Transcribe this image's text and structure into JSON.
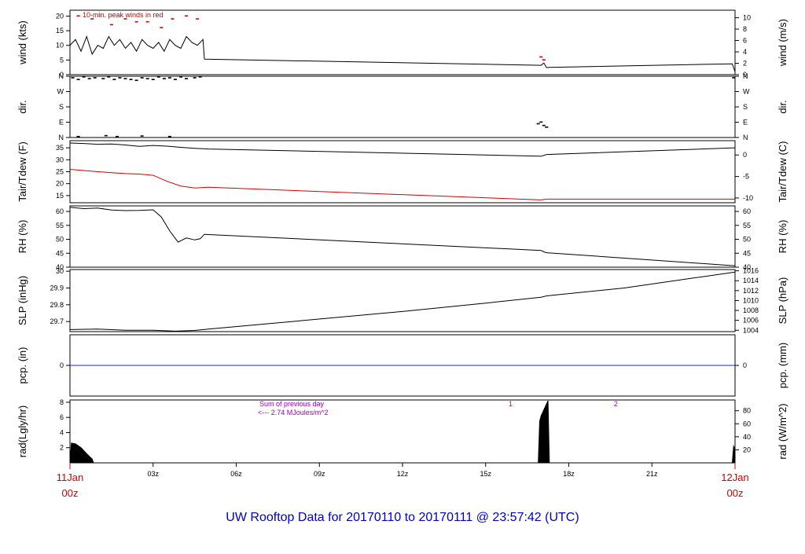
{
  "title": "UW Rooftop Data for 20170110  to  20170111 @ 23:57:42  (UTC)",
  "colors": {
    "black": "#000000",
    "red": "#d00000",
    "blue": "#0000c0",
    "purple": "#9a00c0",
    "pcp_line": "#2222dd"
  },
  "x_axis": {
    "range_hours": [
      0,
      24
    ],
    "ticks": [
      {
        "h": 3,
        "label": "03z"
      },
      {
        "h": 6,
        "label": "06z"
      },
      {
        "h": 9,
        "label": "09z"
      },
      {
        "h": 12,
        "label": "12z"
      },
      {
        "h": 15,
        "label": "15z"
      },
      {
        "h": 18,
        "label": "18z"
      },
      {
        "h": 21,
        "label": "21z"
      }
    ],
    "start_label": {
      "day": "11Jan",
      "time": "00z"
    },
    "end_label": {
      "day": "12Jan",
      "time": "00z"
    }
  },
  "chart_data": [
    {
      "type": "line",
      "ylabel_left": "wind (kts)",
      "ylabel_right": "wind (m/s)",
      "ylim": [
        0,
        22
      ],
      "yticks_left": [
        0,
        5,
        10,
        15,
        20
      ],
      "yticks_right": {
        "values": [
          0,
          2,
          4,
          6,
          8,
          10
        ],
        "to_left": 1.94384
      },
      "annotation": "10-min. peak winds in red",
      "series": [
        {
          "color": "#000000",
          "x": [
            0,
            0.2,
            0.4,
            0.6,
            0.8,
            1.0,
            1.2,
            1.4,
            1.6,
            1.8,
            2.0,
            2.2,
            2.4,
            2.6,
            2.8,
            3.0,
            3.2,
            3.4,
            3.6,
            3.8,
            4.0,
            4.2,
            4.4,
            4.6,
            4.8,
            4.85,
            17.0,
            17.1,
            17.2,
            17.3,
            23.9,
            24.0
          ],
          "y": [
            10,
            12,
            8,
            13,
            7,
            10,
            9,
            13,
            10,
            12,
            9,
            11,
            8,
            12,
            10,
            9,
            11,
            8,
            12,
            10,
            9,
            13,
            11,
            10,
            12,
            5.3,
            3.2,
            4.0,
            2.4,
            2.5,
            3.7,
            1.0
          ]
        }
      ],
      "peaks": {
        "color": "#d00000",
        "x": [
          0.3,
          0.8,
          1.5,
          2.0,
          2.4,
          2.8,
          3.3,
          3.7,
          4.2,
          4.6,
          17.0,
          17.1
        ],
        "y": [
          20,
          19,
          17,
          19,
          18,
          18,
          16,
          19,
          20,
          19,
          6,
          5
        ]
      }
    },
    {
      "type": "scatter",
      "ylabel_left": "dir.",
      "ylabel_right": "dir.",
      "ylim": [
        0,
        360
      ],
      "yticks": [
        {
          "v": 0,
          "l": "N"
        },
        {
          "v": 90,
          "l": "E"
        },
        {
          "v": 180,
          "l": "S"
        },
        {
          "v": 270,
          "l": "W"
        },
        {
          "v": 360,
          "l": "N"
        }
      ],
      "x": [
        0.1,
        0.3,
        0.5,
        0.7,
        0.9,
        1.2,
        1.4,
        1.6,
        1.8,
        2.0,
        2.2,
        2.4,
        2.6,
        2.8,
        3.0,
        3.2,
        3.4,
        3.6,
        3.8,
        4.0,
        4.2,
        4.5,
        4.7,
        0.3,
        1.3,
        1.7,
        2.6,
        3.6,
        16.9,
        17.0,
        17.1,
        17.2,
        23.95
      ],
      "y": [
        350,
        340,
        355,
        345,
        350,
        345,
        355,
        340,
        350,
        345,
        340,
        335,
        350,
        345,
        340,
        355,
        345,
        350,
        340,
        355,
        345,
        350,
        355,
        5,
        10,
        5,
        8,
        5,
        80,
        90,
        70,
        60,
        350
      ]
    },
    {
      "type": "line",
      "ylabel_left": "Tair/Tdew (F)",
      "ylabel_right": "Tair/Tdew (C)",
      "ylim": [
        12,
        38
      ],
      "yticks_left": [
        15,
        20,
        25,
        30,
        35
      ],
      "yticks_right": {
        "values": [
          -10,
          -5,
          0
        ],
        "c_to_f": true
      },
      "series": [
        {
          "name": "Tair",
          "color": "#000000",
          "x": [
            0,
            0.5,
            1.0,
            1.5,
            2.0,
            2.5,
            3.0,
            3.5,
            4.0,
            4.5,
            5.0,
            17.0,
            17.2,
            24.0
          ],
          "y": [
            37.0,
            36.8,
            36.5,
            36.6,
            36.2,
            35.6,
            36.0,
            35.7,
            35.2,
            34.8,
            34.5,
            31.5,
            32.2,
            35.0
          ]
        },
        {
          "name": "Tdew",
          "color": "#d00000",
          "x": [
            0,
            0.5,
            1.0,
            1.5,
            2.0,
            2.5,
            3.0,
            3.5,
            4.0,
            4.5,
            5.0,
            17.0,
            17.2,
            24.0
          ],
          "y": [
            26.0,
            25.5,
            25.0,
            24.6,
            24.2,
            24.0,
            23.5,
            21.0,
            19.0,
            18.2,
            18.5,
            13.2,
            13.5,
            13.5
          ]
        }
      ]
    },
    {
      "type": "line",
      "ylabel_left": "RH (%)",
      "ylabel_right": "RH (%)",
      "ylim": [
        40,
        62
      ],
      "yticks_left": [
        40,
        45,
        50,
        55,
        60
      ],
      "yticks_right": {
        "values": [
          40,
          45,
          50,
          55,
          60
        ]
      },
      "series": [
        {
          "color": "#000000",
          "x": [
            0,
            0.5,
            1.0,
            1.5,
            2.0,
            2.5,
            3.0,
            3.3,
            3.6,
            3.9,
            4.2,
            4.5,
            4.7,
            4.85,
            17.0,
            17.1,
            17.2,
            24.0
          ],
          "y": [
            61.5,
            61.0,
            61.2,
            60.5,
            60.3,
            60.4,
            60.6,
            58.0,
            53.0,
            49.0,
            50.5,
            49.8,
            50.2,
            51.8,
            46.0,
            45.5,
            45.2,
            40.5
          ]
        }
      ]
    },
    {
      "type": "line",
      "ylabel_left": "SLP (inHg)",
      "ylabel_right": "SLP (hPa)",
      "ylim": [
        29.64,
        30.01
      ],
      "yticks_left": [
        29.7,
        29.8,
        29.9,
        30.0
      ],
      "yticks_right": {
        "values": [
          1004,
          1006,
          1008,
          1010,
          1012,
          1014,
          1016
        ],
        "hpa_to_inhg": 0.02953
      },
      "series": [
        {
          "color": "#000000",
          "x": [
            0,
            1.0,
            2.0,
            3.0,
            3.8,
            4.5,
            5.0,
            8.0,
            12.0,
            15.0,
            17.0,
            17.2,
            20.0,
            24.0
          ],
          "y": [
            29.652,
            29.655,
            29.648,
            29.648,
            29.643,
            29.647,
            29.655,
            29.7,
            29.76,
            29.81,
            29.845,
            29.853,
            29.9,
            29.995
          ]
        }
      ]
    },
    {
      "type": "line",
      "ylabel_left": "pcp. (in)",
      "ylabel_right": "pcp. (mm)",
      "ylim": [
        -1,
        1
      ],
      "yticks_left": [
        0
      ],
      "yticks_right": {
        "values": [
          0
        ]
      },
      "series": [
        {
          "color": "#2222dd",
          "x": [
            0,
            24
          ],
          "y": [
            0,
            0
          ]
        }
      ]
    },
    {
      "type": "area",
      "ylabel_left": "rad(Lgly/hr)",
      "ylabel_right": "rad (W/m^2)",
      "ylim": [
        0,
        8.3
      ],
      "yticks_left": [
        2,
        4,
        6,
        8
      ],
      "yticks_right": {
        "values": [
          20,
          40,
          60,
          80
        ],
        "wm2_to_lgly": 0.086
      },
      "annotation_lines": [
        "Sum of previous day",
        "<--- 2.74 MJoules/m^2"
      ],
      "markers": [
        {
          "h": 15.9,
          "label": "1"
        },
        {
          "h": 19.7,
          "label": "2"
        }
      ],
      "series": [
        {
          "color": "#000000",
          "x": [
            0,
            0.05,
            0.2,
            0.4,
            0.6,
            0.8,
            0.85,
            16.9,
            16.95,
            17.0,
            17.1,
            17.2,
            17.25,
            17.3,
            23.9,
            23.95,
            24.0
          ],
          "y": [
            0,
            2.6,
            2.5,
            2.0,
            1.2,
            0.5,
            0,
            0,
            5.5,
            6.2,
            7.0,
            7.8,
            8.2,
            0,
            0,
            2.2,
            1.8
          ]
        }
      ]
    }
  ]
}
